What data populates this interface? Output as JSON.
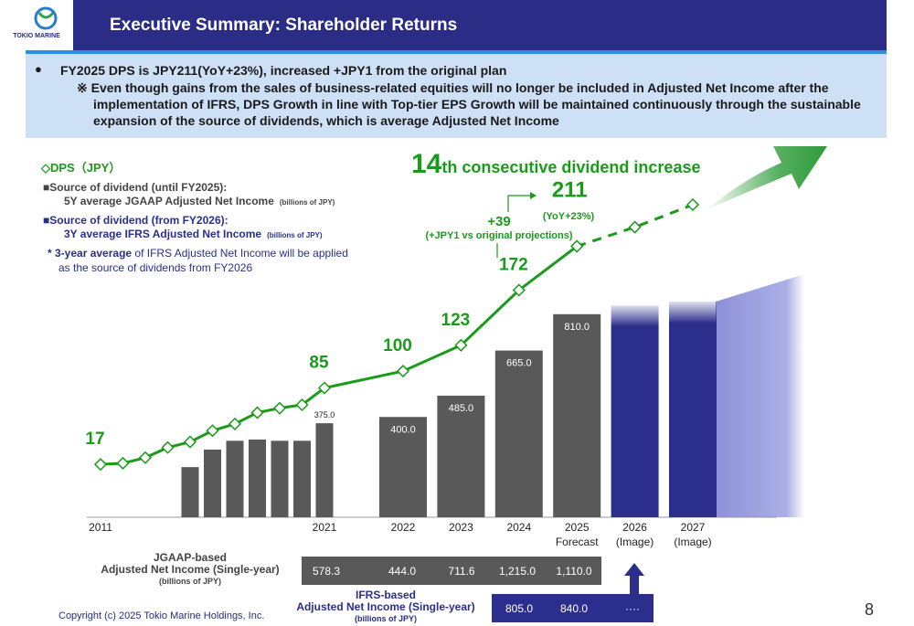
{
  "header": {
    "logo": "TOKIO MARINE",
    "title": "Executive Summary: Shareholder Returns"
  },
  "summary": {
    "bullet": "FY2025 DPS is JPY211(YoY+23%), increased +JPY1 from the original plan",
    "note": "※ Even though gains from the sales of business-related equities will no longer be included in Adjusted Net Income after the implementation of IFRS, DPS Growth in line with Top-tier EPS Growth will be maintained continuously through the sustainable expansion of the source of dividends, which is average Adjusted Net Income"
  },
  "chart_data": {
    "type": "combo",
    "categories": [
      "2011",
      null,
      null,
      null,
      null,
      null,
      null,
      null,
      null,
      null,
      "2021",
      "2022",
      "2023",
      "2024",
      "2025",
      "2026",
      "2027"
    ],
    "category_notes": [
      null,
      null,
      null,
      null,
      null,
      null,
      null,
      null,
      null,
      null,
      null,
      null,
      null,
      null,
      "Forecast",
      "(Image)",
      "(Image)"
    ],
    "ylim": [
      0,
      1480
    ],
    "y2lim": [
      -30,
      300
    ],
    "grid": false,
    "series": [
      {
        "name": "◇DPS（JPY）",
        "type": "line",
        "axis": "y2",
        "color": "#1a9b1a",
        "values": [
          17,
          18,
          23,
          32,
          37,
          47,
          53,
          63,
          67,
          70,
          85,
          100,
          123,
          172,
          211,
          null,
          null
        ],
        "value_labels": [
          "17",
          null,
          null,
          null,
          null,
          null,
          null,
          null,
          null,
          null,
          "85",
          "100",
          "123",
          "172",
          "211",
          null,
          null
        ]
      },
      {
        "type": "line",
        "axis": "y2",
        "color": "#1a9b1a",
        "dashed": true,
        "values": [
          null,
          null,
          null,
          null,
          null,
          null,
          null,
          null,
          null,
          null,
          null,
          null,
          null,
          null,
          211,
          228,
          248
        ]
      },
      {
        "name": "■Source of dividend (until FY2025):",
        "detail": "5Y average JGAAP Adjusted Net Income",
        "unit": "(billions of JPY)",
        "type": "bar",
        "color": "#595959",
        "values": [
          null,
          null,
          null,
          null,
          200,
          270,
          305,
          310,
          305,
          305,
          375,
          400,
          485,
          665,
          810,
          null,
          null
        ],
        "value_labels": [
          null,
          null,
          null,
          null,
          null,
          null,
          null,
          null,
          null,
          null,
          "375.0",
          "400.0",
          "485.0",
          "665.0",
          "810.0",
          null,
          null
        ]
      },
      {
        "name": "■Source of dividend (from FY2026):",
        "detail": "3Y average IFRS Adjusted Net Income",
        "unit": "(billions of JPY)",
        "type": "bar",
        "color": "#2b2e8c",
        "values": [
          null,
          null,
          null,
          null,
          null,
          null,
          null,
          null,
          null,
          null,
          null,
          null,
          null,
          null,
          null,
          845,
          860
        ]
      }
    ],
    "annotations": {
      "headline_number": "14",
      "headline_text": "th consecutive dividend increase",
      "yoy": "(YoY+23%)",
      "increase": "+39",
      "vs_plan": "(+JPY1 vs original projections)",
      "footnote": [
        "* ",
        "3-year average",
        " of IFRS Adjusted Net Income will be applied",
        "as the source of dividends from FY2026"
      ]
    }
  },
  "table": {
    "rows": [
      {
        "label": [
          "JGAAP-based",
          "Adjusted Net Income (Single-year)",
          "(billions of JPY)"
        ],
        "cells": [
          "578.3",
          "444.0",
          "711.6",
          "1,215.0",
          "1,110.0"
        ]
      },
      {
        "label": [
          "IFRS-based",
          "Adjusted Net Income (Single-year)",
          "(billions of JPY)"
        ],
        "cells": [
          "805.0",
          "840.0",
          "····"
        ]
      }
    ]
  },
  "footer": {
    "copyright": "Copyright (c) 2025 Tokio Marine Holdings, Inc.",
    "page": "8"
  }
}
